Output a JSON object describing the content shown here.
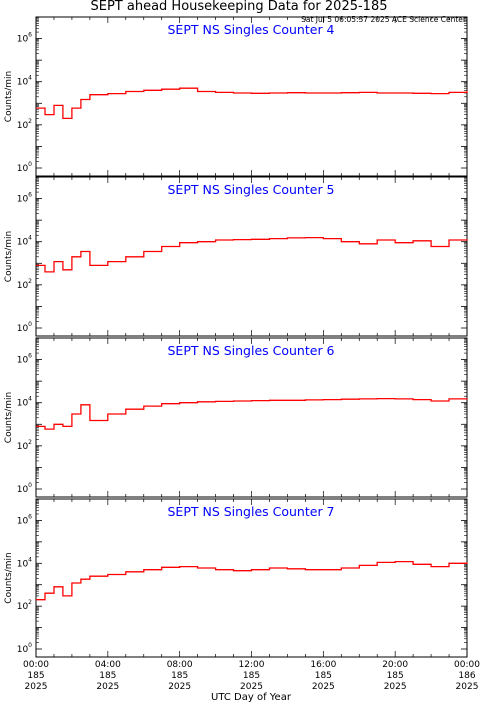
{
  "header": {
    "title": "SEPT ahead Housekeeping Data for 2025-185",
    "timestamp": "Sat Jul  5 06:05:37 2025 ACE Science Center"
  },
  "colors": {
    "series": "#ff0000",
    "panel_title": "#0000ff",
    "axis": "#000000"
  },
  "shared_axis": {
    "xlabel": "UTC Day of Year",
    "x_ticks": [
      {
        "time": "00:00",
        "doy": "185",
        "year": "2025"
      },
      {
        "time": "04:00",
        "doy": "185",
        "year": "2025"
      },
      {
        "time": "08:00",
        "doy": "185",
        "year": "2025"
      },
      {
        "time": "12:00",
        "doy": "185",
        "year": "2025"
      },
      {
        "time": "16:00",
        "doy": "185",
        "year": "2025"
      },
      {
        "time": "20:00",
        "doy": "185",
        "year": "2025"
      },
      {
        "time": "00:00",
        "doy": "186",
        "year": "2025"
      }
    ]
  },
  "chart_data": [
    {
      "type": "line",
      "title": "SEPT NS Singles Counter 4",
      "ylabel": "Counts/min",
      "yscale": "log",
      "ylim": [
        1,
        10000000
      ],
      "y_tick_labels": [
        "10^0",
        "10^2",
        "10^4",
        "10^6"
      ],
      "xlim_hours": [
        0,
        24
      ],
      "series": [
        {
          "x": [
            0,
            0.5,
            1,
            1.5,
            2,
            2.5,
            3,
            4,
            5,
            6,
            7,
            8,
            9,
            10,
            11,
            12,
            13,
            14,
            15,
            16,
            17,
            18,
            19,
            20,
            21,
            22,
            23,
            24
          ],
          "values": [
            600,
            300,
            800,
            200,
            600,
            1500,
            2500,
            2800,
            3500,
            4000,
            4500,
            5000,
            3500,
            3200,
            3000,
            2900,
            3000,
            3100,
            3000,
            3000,
            3100,
            3200,
            3000,
            3000,
            2900,
            2800,
            3200,
            3800
          ]
        }
      ]
    },
    {
      "type": "line",
      "title": "SEPT NS Singles Counter 5",
      "ylabel": "Counts/min",
      "yscale": "log",
      "ylim": [
        1,
        10000000
      ],
      "y_tick_labels": [
        "10^0",
        "10^2",
        "10^4",
        "10^6"
      ],
      "xlim_hours": [
        0,
        24
      ],
      "series": [
        {
          "x": [
            0,
            0.5,
            1,
            1.5,
            2,
            2.5,
            3,
            4,
            5,
            6,
            7,
            8,
            9,
            10,
            11,
            12,
            13,
            14,
            15,
            16,
            17,
            18,
            19,
            20,
            21,
            22,
            23,
            24
          ],
          "values": [
            800,
            400,
            1200,
            500,
            2000,
            3500,
            800,
            1200,
            2000,
            3500,
            6000,
            9000,
            10000,
            12000,
            12500,
            13000,
            14000,
            15000,
            15500,
            14000,
            10000,
            8000,
            12000,
            9000,
            11000,
            6000,
            12000,
            13000
          ]
        }
      ]
    },
    {
      "type": "line",
      "title": "SEPT NS Singles Counter 6",
      "ylabel": "Counts/min",
      "yscale": "log",
      "ylim": [
        1,
        10000000
      ],
      "y_tick_labels": [
        "10^0",
        "10^2",
        "10^4",
        "10^6"
      ],
      "xlim_hours": [
        0,
        24
      ],
      "series": [
        {
          "x": [
            0,
            0.5,
            1,
            1.5,
            2,
            2.5,
            3,
            4,
            5,
            6,
            7,
            8,
            9,
            10,
            11,
            12,
            13,
            14,
            15,
            16,
            17,
            18,
            19,
            20,
            21,
            22,
            23,
            24
          ],
          "values": [
            800,
            600,
            1000,
            800,
            3000,
            8000,
            1500,
            3000,
            5000,
            7000,
            9000,
            10000,
            11000,
            11500,
            12000,
            12500,
            13000,
            13000,
            13500,
            14000,
            14500,
            15000,
            15500,
            15000,
            14000,
            12000,
            15000,
            16000
          ]
        }
      ]
    },
    {
      "type": "line",
      "title": "SEPT NS Singles Counter 7",
      "ylabel": "Counts/min",
      "yscale": "log",
      "ylim": [
        1,
        10000000
      ],
      "y_tick_labels": [
        "10^0",
        "10^2",
        "10^4",
        "10^6"
      ],
      "xlim_hours": [
        0,
        24
      ],
      "series": [
        {
          "x": [
            0,
            0.5,
            1,
            1.5,
            2,
            2.5,
            3,
            4,
            5,
            6,
            7,
            8,
            9,
            10,
            11,
            12,
            13,
            14,
            15,
            16,
            17,
            18,
            19,
            20,
            21,
            22,
            23,
            24
          ],
          "values": [
            200,
            400,
            800,
            300,
            1200,
            1800,
            2500,
            3000,
            4000,
            5000,
            6500,
            7000,
            6000,
            5000,
            4500,
            5000,
            6000,
            5500,
            5000,
            5000,
            6000,
            8000,
            11000,
            12000,
            9000,
            7000,
            10000,
            11000
          ]
        }
      ]
    }
  ]
}
